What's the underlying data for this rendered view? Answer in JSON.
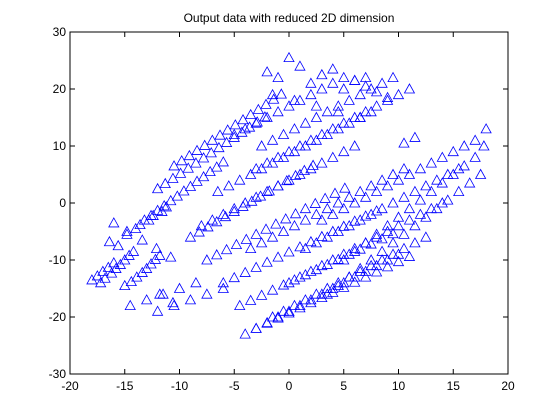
{
  "chart_data": {
    "type": "scatter",
    "title": "Output data with reduced 2D dimension",
    "xlabel": "",
    "ylabel": "",
    "xlim": [
      -20,
      20
    ],
    "ylim": [
      -30,
      30
    ],
    "xticks": [
      -20,
      -15,
      -10,
      -5,
      0,
      5,
      10,
      15,
      20
    ],
    "yticks": [
      -30,
      -20,
      -10,
      0,
      10,
      20,
      30
    ],
    "xtick_labels": [
      "-20",
      "-15",
      "-10",
      "-5",
      "0",
      "5",
      "10",
      "15",
      "20"
    ],
    "ytick_labels": [
      "-30",
      "-20",
      "-10",
      "0",
      "10",
      "20",
      "30"
    ],
    "grid": false,
    "marker": "triangle-open",
    "marker_color": "#0000ff",
    "series": [
      {
        "x": [
          -18.0,
          -17.5,
          -17.0,
          -16.5,
          -16.0,
          -17.2,
          -16.8,
          -16.2,
          -15.8,
          -15.4,
          -15.0,
          -14.6,
          -14.2,
          -15.6,
          -16.4,
          -15.0,
          -14.4,
          -13.9,
          -13.4,
          -13.0,
          -12.6,
          -12.2,
          -11.8,
          -14.8,
          -14.0,
          -13.6,
          -12.8,
          -12.4,
          -11.6,
          -11.2,
          -13.2,
          -12.6,
          -12.0,
          -11.4,
          -10.8,
          -10.2,
          -9.6,
          -9.0,
          -8.4,
          -7.8,
          -7.2,
          -6.6,
          -6.0,
          -11.8,
          -10.6,
          -12.0,
          -11.3,
          -10.6,
          -9.9,
          -9.2,
          -8.5,
          -7.8,
          -7.1,
          -6.4,
          -5.7,
          -5.0,
          -4.3,
          -3.6,
          -2.9,
          -2.2,
          -10.5,
          -9.8,
          -9.1,
          -8.4,
          -7.7,
          -7.0,
          -6.3,
          -5.6,
          -4.9,
          -4.2,
          -3.5,
          -2.8,
          -2.1,
          -1.4,
          -0.7,
          -9.0,
          -8.2,
          -7.4,
          -6.6,
          -5.8,
          -5.0,
          -4.2,
          -3.4,
          -2.6,
          -1.8,
          -1.0,
          -0.2,
          0.6,
          1.4,
          2.2,
          -7.5,
          -6.6,
          -5.7,
          -4.8,
          -3.9,
          -3.0,
          -2.1,
          -1.2,
          -0.3,
          0.6,
          1.5,
          2.4,
          3.3,
          4.2,
          5.1,
          -6.0,
          -5.0,
          -4.0,
          -3.0,
          -2.0,
          -1.0,
          0.0,
          1.0,
          2.0,
          3.0,
          4.0,
          5.0,
          6.0,
          7.0,
          8.0,
          -4.5,
          -3.5,
          -2.5,
          -1.5,
          -0.5,
          0.5,
          1.5,
          2.5,
          3.5,
          4.5,
          5.5,
          6.5,
          7.5,
          8.5,
          9.5,
          -3.0,
          -2.0,
          -1.0,
          0.0,
          1.0,
          2.0,
          3.0,
          4.0,
          5.0,
          6.0,
          7.0,
          8.0,
          9.0,
          10.0,
          11.0,
          -1.5,
          -0.5,
          0.5,
          1.5,
          2.5,
          3.5,
          4.5,
          5.5,
          6.5,
          7.5,
          8.5,
          9.5,
          10.5,
          11.5,
          12.5,
          0.0,
          1.0,
          2.0,
          3.0,
          4.0,
          5.0,
          6.0,
          7.0,
          8.0,
          9.0,
          10.0,
          11.0,
          12.0,
          13.0,
          14.0,
          1.5,
          2.5,
          3.5,
          4.5,
          5.5,
          6.5,
          7.5,
          8.5,
          9.5,
          10.5,
          11.5,
          12.5,
          13.5,
          14.5,
          15.5,
          3.0,
          4.0,
          5.0,
          6.0,
          7.0,
          8.0,
          9.0,
          10.0,
          11.0,
          12.0,
          13.0,
          14.0,
          15.0,
          16.0,
          17.0,
          -3.0,
          -2.0,
          -1.0,
          0.0,
          1.0,
          2.0,
          3.0,
          4.0,
          5.0,
          6.0,
          7.0,
          8.0,
          9.0,
          10.0,
          11.0,
          -5.0,
          -4.0,
          -3.0,
          -2.0,
          -1.0,
          0.0,
          1.0,
          2.0,
          3.0,
          4.0,
          5.0,
          6.0,
          7.0,
          8.0,
          9.0,
          -6.5,
          -5.5,
          -4.5,
          -3.5,
          -2.5,
          -1.5,
          -0.5,
          0.5,
          1.5,
          2.5,
          3.5,
          4.5,
          5.5,
          6.5,
          7.5,
          -8.0,
          -7.0,
          -6.0,
          -5.0,
          -4.0,
          -3.0,
          -2.0,
          -1.0,
          0.0,
          1.0,
          2.0,
          3.0,
          4.0,
          5.0,
          6.0,
          -2.0,
          -1.0,
          0.0,
          1.0,
          2.0,
          3.0,
          4.0,
          5.0,
          6.0,
          7.0,
          -1.5,
          0.5,
          2.5,
          4.5,
          6.5,
          -3.5,
          -2.5,
          -1.5,
          -0.5,
          0.5,
          1.5,
          2.5,
          3.5,
          4.5,
          5.5,
          6.5,
          7.5,
          8.5,
          9.5,
          10.5,
          -14.5,
          -13.0,
          -11.5,
          -10.0,
          -8.5,
          -12.0,
          -10.5,
          -9.0,
          -7.5,
          -6.0,
          -16.0,
          -14.8,
          -13.4,
          -12.1,
          -10.8,
          3.5,
          4.5,
          5.5,
          6.5,
          7.5,
          8.5,
          9.5,
          10.5,
          11.5,
          12.5,
          13.5,
          14.5,
          15.5,
          16.5,
          17.5,
          5.0,
          6.0,
          7.0,
          8.0,
          9.0,
          10.0,
          11.0,
          12.0,
          13.0,
          14.0,
          15.0,
          16.0,
          17.0,
          17.8,
          18.0,
          -4.0,
          -3.0,
          -2.0,
          -1.0,
          0.0,
          1.0,
          2.0,
          3.0,
          4.0,
          5.0,
          6.0,
          7.0,
          8.0,
          9.0,
          10.0,
          -2.5,
          -1.5,
          -0.5,
          0.5,
          1.5,
          2.5,
          3.5,
          4.5,
          5.5,
          6.5,
          7.5,
          8.5,
          9.5,
          10.5,
          11.5
        ],
        "y": [
          -13.5,
          -12.8,
          -12.0,
          -11.3,
          -10.5,
          -14.0,
          -13.2,
          -12.3,
          -11.5,
          -10.8,
          -10.0,
          -9.2,
          -8.5,
          -7.5,
          -6.8,
          -14.5,
          -13.8,
          -13.0,
          -12.2,
          -11.5,
          -10.7,
          -9.9,
          -9.2,
          -5.5,
          -4.5,
          -3.8,
          -3.0,
          -2.2,
          -1.5,
          -0.7,
          -3.0,
          -2.2,
          -1.3,
          -0.5,
          0.4,
          1.2,
          2.1,
          2.9,
          3.8,
          4.6,
          5.5,
          6.3,
          7.2,
          -16.0,
          -17.5,
          2.5,
          3.4,
          4.3,
          5.2,
          6.1,
          7.0,
          7.9,
          8.8,
          9.7,
          10.6,
          11.5,
          12.4,
          13.3,
          14.2,
          15.1,
          6.5,
          7.4,
          8.3,
          9.2,
          10.1,
          11.0,
          11.9,
          12.8,
          13.7,
          14.6,
          15.5,
          16.4,
          17.3,
          18.2,
          19.1,
          -6.0,
          -5.1,
          -4.2,
          -3.3,
          -2.4,
          -1.5,
          -0.6,
          0.3,
          1.2,
          2.1,
          3.0,
          3.9,
          4.8,
          5.7,
          6.6,
          -10.0,
          -9.1,
          -8.2,
          -7.3,
          -6.4,
          -5.5,
          -4.6,
          -3.7,
          -2.8,
          -1.9,
          -1.0,
          -0.1,
          0.8,
          1.7,
          2.6,
          -14.0,
          -13.1,
          -12.2,
          -11.3,
          -10.4,
          -9.5,
          -8.6,
          -7.7,
          -6.8,
          -5.9,
          -5.0,
          -4.1,
          -3.2,
          -2.3,
          -1.4,
          -18.0,
          -17.1,
          -16.2,
          -15.3,
          -14.4,
          -13.5,
          -12.6,
          -11.7,
          -10.8,
          -9.9,
          -9.0,
          -8.1,
          -7.2,
          -6.3,
          -5.4,
          -22.0,
          -21.1,
          -20.2,
          -19.3,
          -18.4,
          -17.5,
          -16.6,
          -15.7,
          -14.8,
          -13.9,
          -13.0,
          -12.1,
          -11.2,
          -10.3,
          -9.4,
          -20.0,
          -19.0,
          -18.0,
          -17.0,
          -16.0,
          -15.0,
          -14.0,
          -13.0,
          -12.0,
          -11.0,
          -10.0,
          -9.0,
          -8.0,
          -7.0,
          -6.0,
          -14.0,
          -13.0,
          -12.0,
          -11.0,
          -10.0,
          -9.0,
          -8.0,
          -7.0,
          -6.0,
          -5.0,
          -4.0,
          -3.0,
          -2.0,
          -1.0,
          0.0,
          -8.0,
          -7.0,
          -6.0,
          -5.0,
          -4.0,
          -3.0,
          -2.0,
          -1.0,
          0.0,
          1.0,
          2.0,
          3.0,
          4.0,
          5.0,
          6.0,
          -3.0,
          -2.0,
          -1.0,
          0.0,
          1.0,
          2.0,
          3.0,
          4.0,
          5.0,
          6.0,
          7.0,
          8.0,
          9.0,
          10.0,
          11.0,
          6.0,
          7.0,
          8.0,
          9.0,
          10.0,
          11.0,
          12.0,
          13.0,
          14.0,
          15.0,
          16.0,
          17.0,
          18.0,
          19.0,
          20.0,
          12.0,
          13.0,
          14.0,
          15.0,
          16.0,
          17.0,
          18.0,
          19.0,
          20.0,
          21.0,
          22.0,
          21.5,
          20.5,
          19.5,
          18.5,
          2.0,
          3.0,
          4.0,
          5.0,
          6.0,
          7.0,
          8.0,
          9.0,
          10.0,
          11.0,
          12.0,
          13.0,
          14.0,
          15.0,
          16.0,
          -4.0,
          -3.0,
          -2.0,
          -1.0,
          0.0,
          1.0,
          2.0,
          3.0,
          4.0,
          5.0,
          6.0,
          7.0,
          8.0,
          9.0,
          10.0,
          23.0,
          22.0,
          25.5,
          24.0,
          21.0,
          22.5,
          23.5,
          20.0,
          21.5,
          22.0,
          19.0,
          18.0,
          17.0,
          16.0,
          15.0,
          -8.0,
          -7.0,
          -6.0,
          -5.0,
          -4.0,
          -3.0,
          -2.0,
          -1.0,
          0.0,
          1.0,
          2.0,
          3.0,
          4.0,
          5.0,
          6.0,
          -18.0,
          -17.0,
          -16.0,
          -15.0,
          -14.0,
          -19.0,
          -18.0,
          -17.0,
          -16.0,
          -15.0,
          -3.5,
          -5.0,
          -6.5,
          -8.0,
          -9.5,
          -16.0,
          -14.5,
          -13.0,
          -11.5,
          -10.0,
          -8.5,
          -7.0,
          -5.5,
          -4.0,
          -2.5,
          -1.0,
          0.5,
          2.0,
          3.5,
          5.0,
          -10.0,
          -8.5,
          -7.0,
          -5.5,
          -4.0,
          -2.5,
          -1.0,
          0.5,
          2.0,
          3.5,
          5.0,
          6.5,
          8.0,
          10.0,
          13.0,
          -23.0,
          -22.0,
          -21.0,
          -20.0,
          -19.0,
          -18.0,
          -17.0,
          -16.0,
          -15.0,
          -14.0,
          -13.0,
          -12.0,
          -11.0,
          -10.0,
          -9.0,
          10.0,
          11.0,
          12.0,
          13.0,
          14.0,
          15.0,
          16.0,
          17.0,
          18.0,
          19.0,
          20.0,
          21.0,
          22.0,
          10.5,
          11.5
        ]
      }
    ]
  }
}
